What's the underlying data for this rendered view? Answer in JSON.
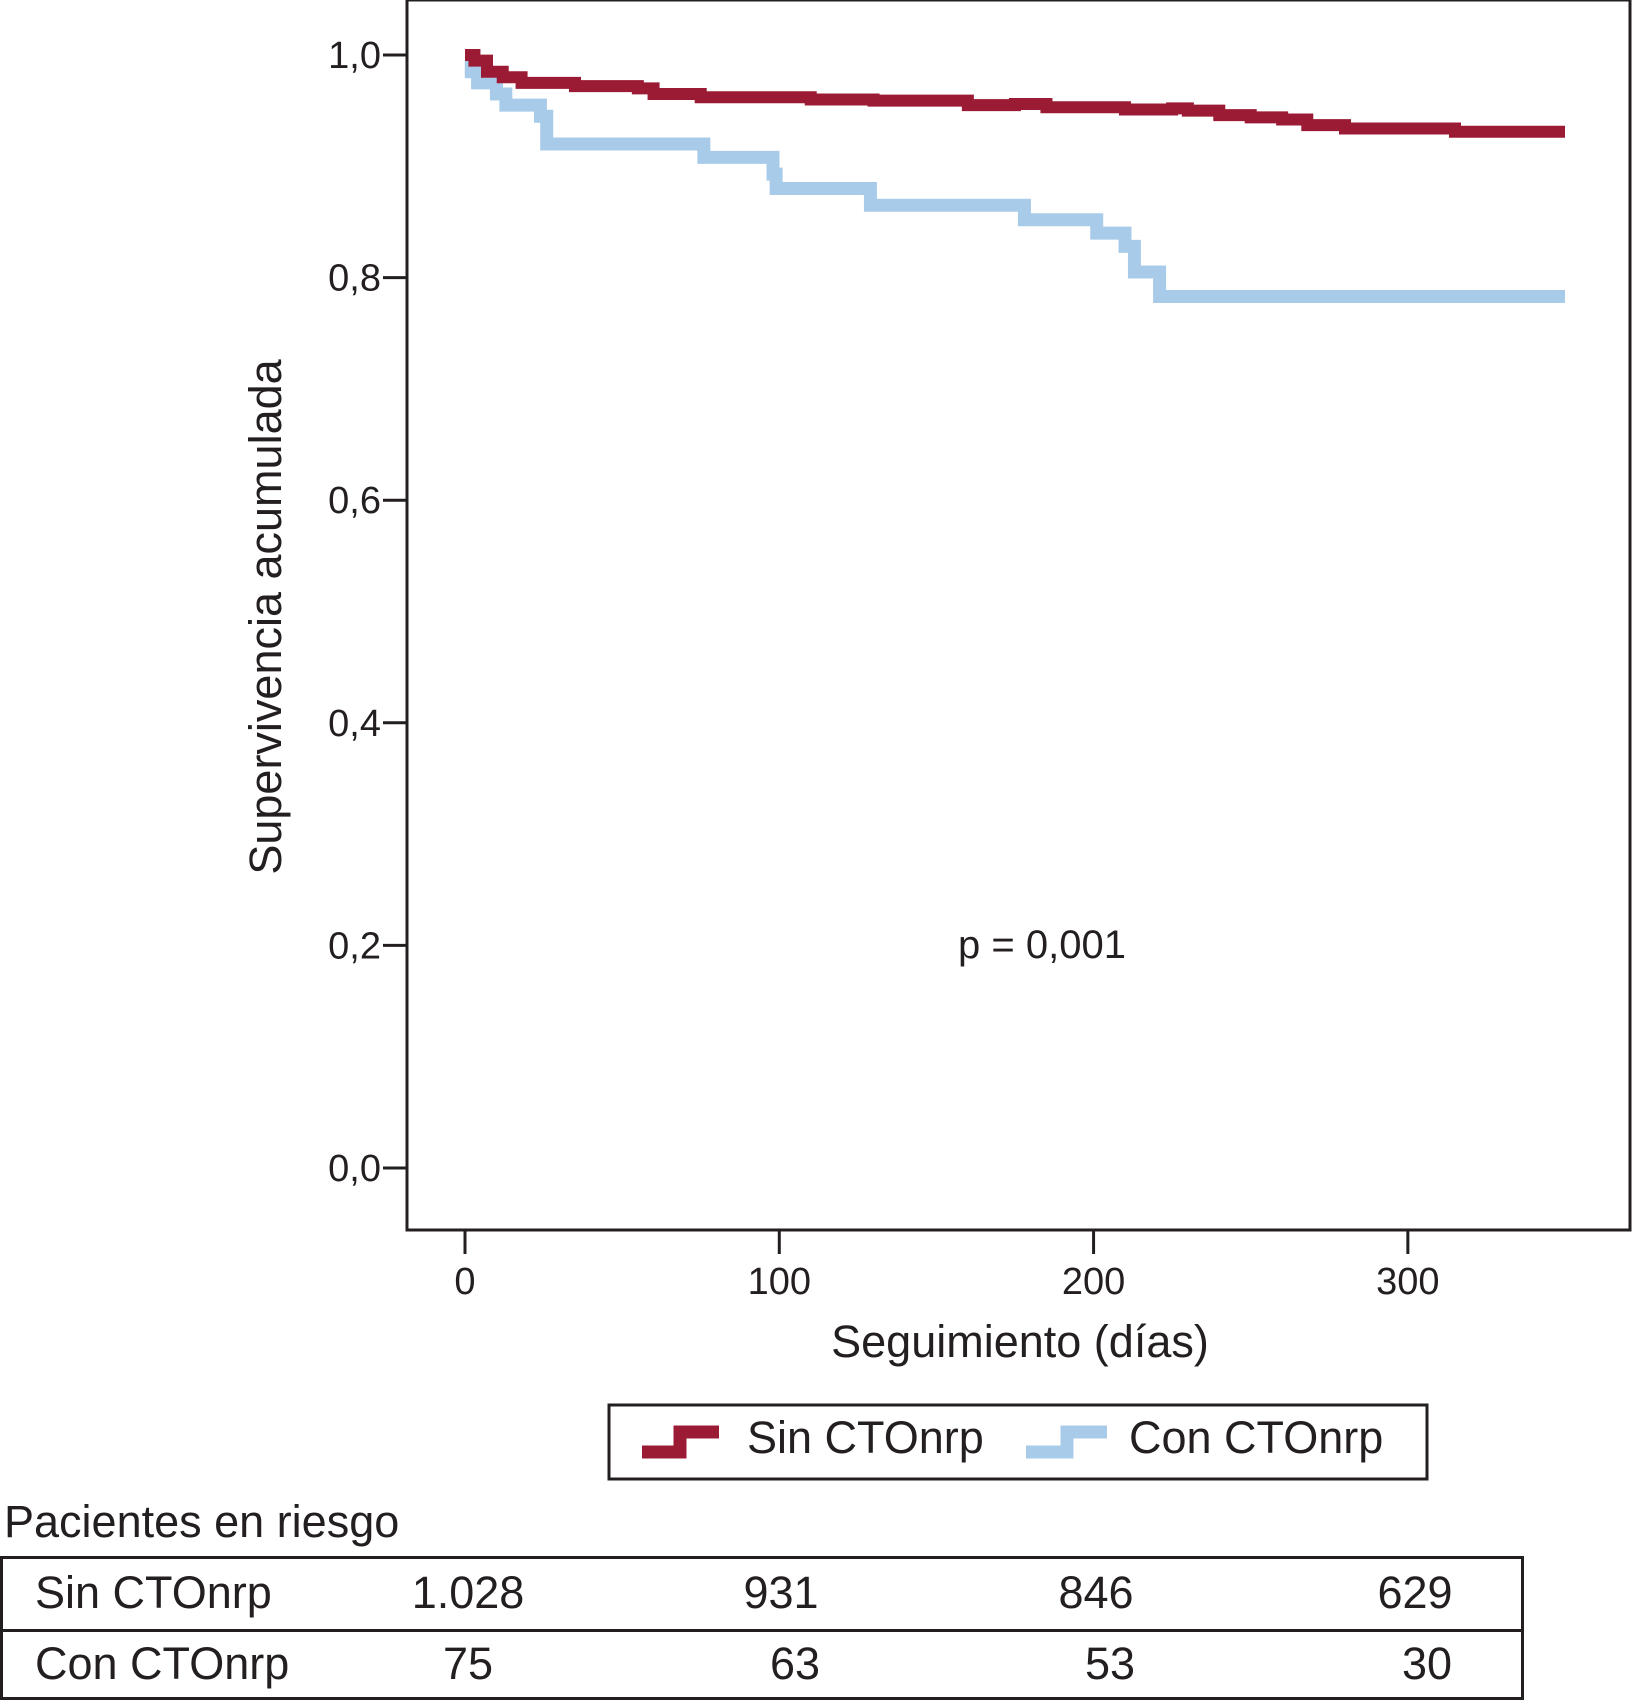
{
  "chart_data": {
    "type": "line",
    "subtype": "kaplan-meier step",
    "title": "",
    "xlabel": "Seguimiento (días)",
    "ylabel": "Supervivencia acumulada",
    "xlim": [
      0,
      350
    ],
    "ylim": [
      0.0,
      1.0
    ],
    "x_ticks": [
      0,
      100,
      200,
      300
    ],
    "x_tick_labels": [
      "0",
      "100",
      "200",
      "300"
    ],
    "y_ticks": [
      0.0,
      0.2,
      0.4,
      0.6,
      0.8,
      1.0
    ],
    "y_tick_labels": [
      "0,0",
      "0,2",
      "0,4",
      "0,6",
      "0,8",
      "1,0"
    ],
    "grid": false,
    "legend_position": "bottom-center",
    "annotation": "p = 0,001",
    "series": [
      {
        "name": "Sin CTOnrp",
        "color": "#9b1b34",
        "points": [
          [
            0,
            1.0
          ],
          [
            3,
            0.995
          ],
          [
            7,
            0.985
          ],
          [
            12,
            0.98
          ],
          [
            18,
            0.975
          ],
          [
            25,
            0.975
          ],
          [
            35,
            0.972
          ],
          [
            55,
            0.97
          ],
          [
            60,
            0.965
          ],
          [
            75,
            0.962
          ],
          [
            95,
            0.962
          ],
          [
            110,
            0.96
          ],
          [
            130,
            0.959
          ],
          [
            155,
            0.959
          ],
          [
            160,
            0.955
          ],
          [
            175,
            0.956
          ],
          [
            185,
            0.953
          ],
          [
            200,
            0.953
          ],
          [
            210,
            0.951
          ],
          [
            225,
            0.952
          ],
          [
            230,
            0.95
          ],
          [
            240,
            0.946
          ],
          [
            250,
            0.944
          ],
          [
            260,
            0.942
          ],
          [
            268,
            0.937
          ],
          [
            280,
            0.934
          ],
          [
            300,
            0.934
          ],
          [
            315,
            0.931
          ],
          [
            350,
            0.931
          ]
        ]
      },
      {
        "name": "Con CTOnrp",
        "color": "#a9cbea",
        "points": [
          [
            0,
            0.995
          ],
          [
            2,
            0.985
          ],
          [
            4,
            0.975
          ],
          [
            10,
            0.965
          ],
          [
            13,
            0.955
          ],
          [
            24,
            0.945
          ],
          [
            26,
            0.92
          ],
          [
            76,
            0.908
          ],
          [
            98,
            0.893
          ],
          [
            99,
            0.88
          ],
          [
            129,
            0.865
          ],
          [
            178,
            0.852
          ],
          [
            201,
            0.84
          ],
          [
            210,
            0.828
          ],
          [
            213,
            0.805
          ],
          [
            221,
            0.783
          ],
          [
            350,
            0.783
          ]
        ]
      }
    ]
  },
  "risk_table": {
    "title": "Pacientes en riesgo",
    "rows": [
      {
        "label": "Sin CTOnrp",
        "values": [
          "1.028",
          "931",
          "846",
          "629"
        ]
      },
      {
        "label": "Con CTOnrp",
        "values": [
          "75",
          "63",
          "53",
          "30"
        ]
      }
    ]
  }
}
